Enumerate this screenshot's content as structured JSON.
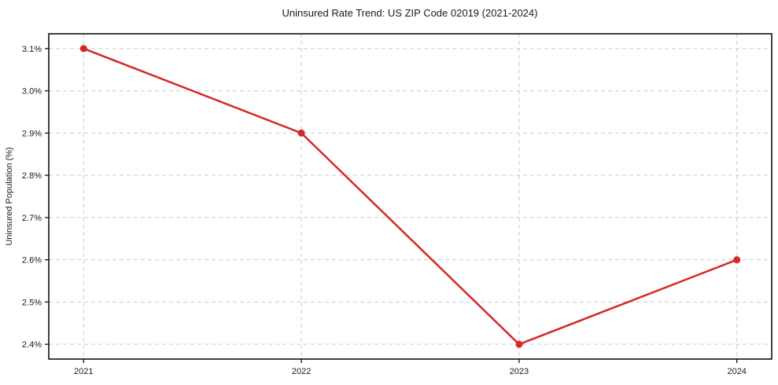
{
  "chart_data": {
    "type": "line",
    "title": "Uninsured Rate Trend: US ZIP Code 02019 (2021-2024)",
    "xlabel": "",
    "ylabel": "Uninsured Population (%)",
    "categories": [
      "2021",
      "2022",
      "2023",
      "2024"
    ],
    "series": [
      {
        "name": "Uninsured rate",
        "values": [
          3.1,
          2.9,
          2.4,
          2.6
        ],
        "color": "#d62728"
      }
    ],
    "ytick_values": [
      2.4,
      2.5,
      2.6,
      2.7,
      2.8,
      2.9,
      3.0,
      3.1
    ],
    "ytick_labels": [
      "2.4%",
      "2.5%",
      "2.6%",
      "2.7%",
      "2.8%",
      "2.9%",
      "3.0%",
      "3.1%"
    ],
    "ylim": [
      2.365,
      3.135
    ],
    "xlim_index": [
      -0.16,
      3.16
    ],
    "grid": true,
    "grid_style": "dashed",
    "legend_position": "none",
    "colors": {
      "line": "#d62728",
      "marker": "#d62728",
      "grid": "#cccccc",
      "spine": "#000000",
      "text": "#1a1a1a",
      "background": "#ffffff"
    }
  }
}
